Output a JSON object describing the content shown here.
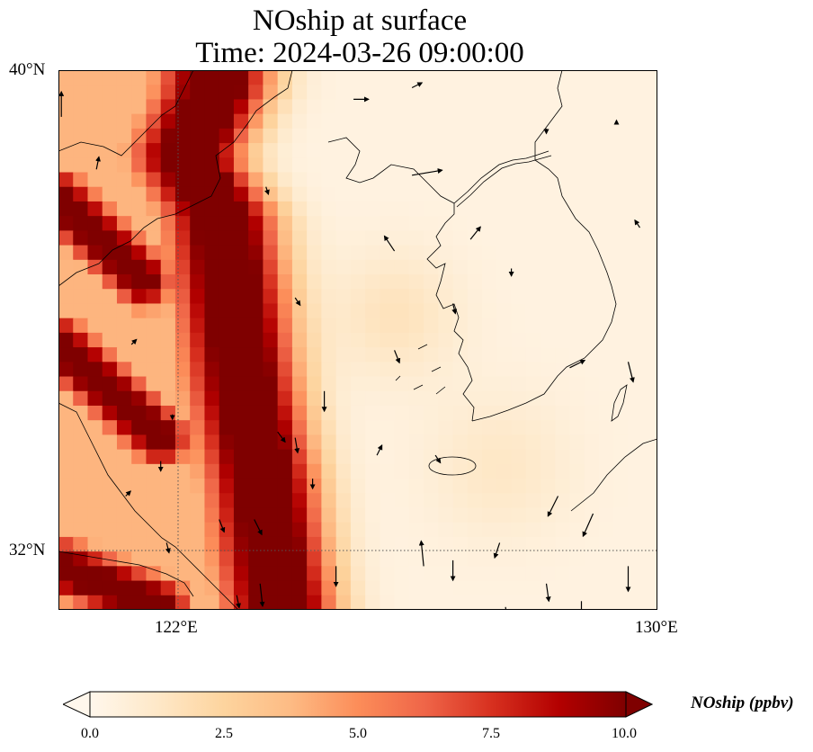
{
  "title": {
    "line1": "NOship at surface",
    "line2": "Time: 2024-03-26 09:00:00"
  },
  "map": {
    "lat_range": [
      30.75,
      40.0
    ],
    "lon_range": [
      119.75,
      130.0
    ],
    "lat_ticks": [
      {
        "value": 40,
        "label": "40°N"
      },
      {
        "value": 32,
        "label": "32°N"
      }
    ],
    "lon_ticks": [
      {
        "value": 122,
        "label": "122°E"
      },
      {
        "value": 130,
        "label": "130°E"
      }
    ],
    "gridlines": "dotted",
    "coastlines": true
  },
  "colorbar": {
    "label": "NOship (ppbv)",
    "colormap": "OrRd",
    "colors": [
      "#fff7ec",
      "#fee8c8",
      "#fdd49e",
      "#fdbb84",
      "#fc8d59",
      "#ef6548",
      "#d7301f",
      "#b30000",
      "#7f0000"
    ],
    "range": [
      0.0,
      10.0
    ],
    "extend": "both",
    "ticks": [
      "0.0",
      "2.5",
      "5.0",
      "7.5",
      "10.0"
    ]
  },
  "chart_data": {
    "type": "heatmap",
    "field": "NOship",
    "units": "ppbv",
    "description_of_pattern": "high values along shipping lanes in western Yellow Sea and East China coast",
    "lane_centers_lon_by_lat": [
      {
        "lat": 39.7,
        "lon": 122.5
      },
      {
        "lat": 38.5,
        "lon": 122.0
      },
      {
        "lat": 37.5,
        "lon": 122.6
      },
      {
        "lat": 36.0,
        "lon": 122.8
      },
      {
        "lat": 34.5,
        "lon": 123.0
      },
      {
        "lat": 33.0,
        "lon": 123.3
      },
      {
        "lat": 31.5,
        "lon": 123.5
      },
      {
        "lat": 30.9,
        "lon": 123.6
      }
    ],
    "secondary_bands": [
      {
        "from": [
          119.75,
          35.3
        ],
        "to": [
          121.5,
          33.7
        ]
      },
      {
        "from": [
          119.75,
          31.5
        ],
        "to": [
          121.5,
          30.8
        ]
      },
      {
        "from": [
          119.75,
          37.8
        ],
        "to": [
          121.2,
          36.4
        ]
      }
    ],
    "wind_vectors": [
      {
        "lon": 119.8,
        "lat": 39.2,
        "u": 0.0,
        "v": 1.0
      },
      {
        "lon": 120.4,
        "lat": 38.3,
        "u": 0.1,
        "v": 0.5
      },
      {
        "lon": 121.4,
        "lat": 40.0,
        "u": 0.4,
        "v": 0.1
      },
      {
        "lon": 123.3,
        "lat": 38.0,
        "u": 0.1,
        "v": -0.3
      },
      {
        "lon": 124.8,
        "lat": 39.5,
        "u": 0.6,
        "v": 0.0
      },
      {
        "lon": 125.8,
        "lat": 39.7,
        "u": 0.4,
        "v": 0.2
      },
      {
        "lon": 125.8,
        "lat": 38.2,
        "u": 1.2,
        "v": 0.2
      },
      {
        "lon": 126.8,
        "lat": 37.1,
        "u": 0.4,
        "v": 0.5
      },
      {
        "lon": 128.1,
        "lat": 39.0,
        "u": 0.0,
        "v": -0.2
      },
      {
        "lon": 129.3,
        "lat": 39.1,
        "u": 0.0,
        "v": 0.1
      },
      {
        "lon": 129.7,
        "lat": 37.3,
        "u": -0.2,
        "v": 0.3
      },
      {
        "lon": 125.5,
        "lat": 36.9,
        "u": -0.4,
        "v": 0.6
      },
      {
        "lon": 126.5,
        "lat": 36.0,
        "u": 0.1,
        "v": -0.4
      },
      {
        "lon": 127.5,
        "lat": 36.6,
        "u": 0.0,
        "v": -0.3
      },
      {
        "lon": 128.5,
        "lat": 34.9,
        "u": 0.6,
        "v": 0.3
      },
      {
        "lon": 129.5,
        "lat": 35.0,
        "u": 0.2,
        "v": -0.8
      },
      {
        "lon": 125.5,
        "lat": 35.2,
        "u": 0.2,
        "v": -0.5
      },
      {
        "lon": 124.3,
        "lat": 34.5,
        "u": 0.0,
        "v": -0.8
      },
      {
        "lon": 125.2,
        "lat": 33.4,
        "u": 0.2,
        "v": 0.4
      },
      {
        "lon": 126.2,
        "lat": 33.4,
        "u": 0.2,
        "v": -0.3
      },
      {
        "lon": 128.3,
        "lat": 32.7,
        "u": -0.4,
        "v": -0.8
      },
      {
        "lon": 128.9,
        "lat": 32.4,
        "u": -0.4,
        "v": -0.9
      },
      {
        "lon": 127.3,
        "lat": 31.9,
        "u": -0.2,
        "v": -0.6
      },
      {
        "lon": 126.0,
        "lat": 31.5,
        "u": -0.1,
        "v": 1.0
      },
      {
        "lon": 126.5,
        "lat": 31.6,
        "u": 0.0,
        "v": -0.8
      },
      {
        "lon": 127.4,
        "lat": 30.8,
        "u": 0.1,
        "v": -0.8
      },
      {
        "lon": 128.1,
        "lat": 31.2,
        "u": 0.1,
        "v": -0.7
      },
      {
        "lon": 129.5,
        "lat": 31.5,
        "u": 0.0,
        "v": -1.0
      },
      {
        "lon": 128.7,
        "lat": 30.9,
        "u": 0.0,
        "v": -1.0
      },
      {
        "lon": 126.0,
        "lat": 30.6,
        "u": 0.1,
        "v": -1.0
      },
      {
        "lon": 124.5,
        "lat": 31.5,
        "u": 0.0,
        "v": -0.8
      },
      {
        "lon": 123.2,
        "lat": 31.2,
        "u": 0.1,
        "v": -0.9
      },
      {
        "lon": 122.8,
        "lat": 31.0,
        "u": 0.1,
        "v": -0.5
      },
      {
        "lon": 123.1,
        "lat": 32.3,
        "u": 0.3,
        "v": -0.6
      },
      {
        "lon": 123.5,
        "lat": 33.8,
        "u": 0.3,
        "v": -0.4
      },
      {
        "lon": 122.5,
        "lat": 32.3,
        "u": 0.2,
        "v": -0.5
      },
      {
        "lon": 121.6,
        "lat": 31.9,
        "u": 0.1,
        "v": -0.4
      },
      {
        "lon": 120.9,
        "lat": 32.7,
        "u": 0.2,
        "v": 0.2
      },
      {
        "lon": 121.5,
        "lat": 33.3,
        "u": 0.0,
        "v": -0.4
      },
      {
        "lon": 124.1,
        "lat": 33.0,
        "u": 0.0,
        "v": -0.4
      },
      {
        "lon": 123.8,
        "lat": 36.1,
        "u": 0.2,
        "v": -0.3
      },
      {
        "lon": 121.0,
        "lat": 35.3,
        "u": 0.2,
        "v": 0.2
      },
      {
        "lon": 121.7,
        "lat": 34.1,
        "u": 0.0,
        "v": -0.2
      },
      {
        "lon": 123.8,
        "lat": 33.7,
        "u": 0.1,
        "v": -0.6
      }
    ]
  }
}
